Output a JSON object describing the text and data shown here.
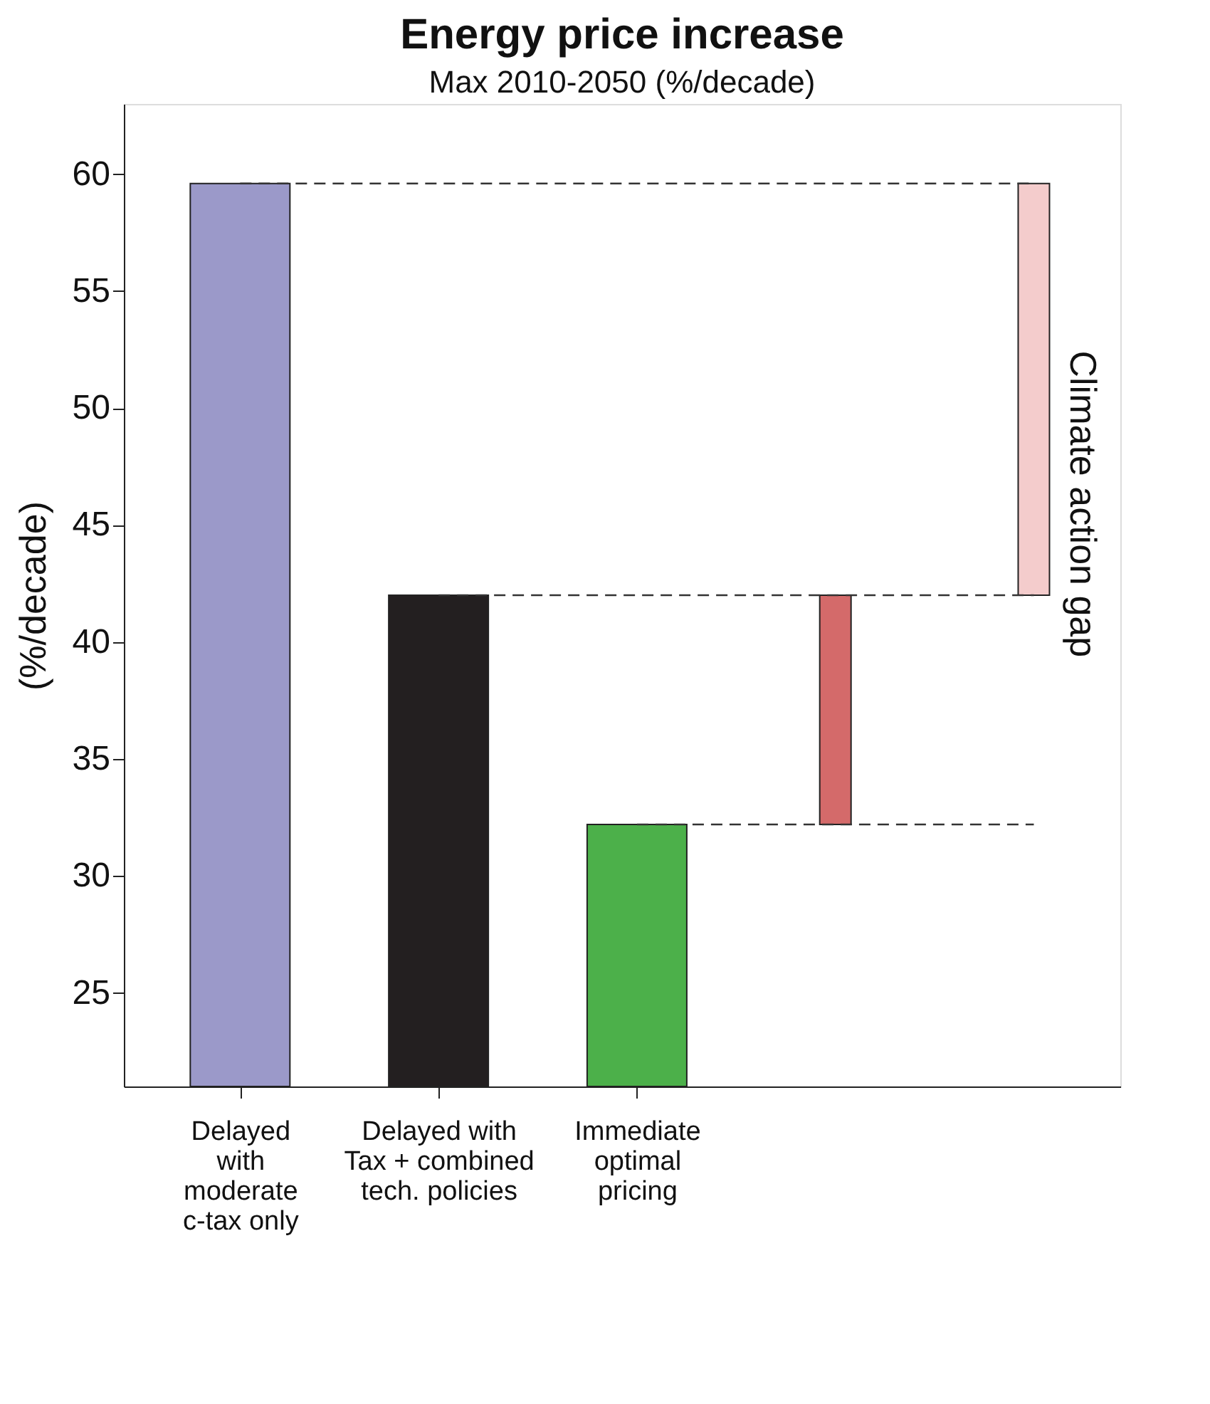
{
  "chart_data": {
    "type": "bar",
    "title": "Energy price increase",
    "subtitle": "Max 2010-2050 (%/decade)",
    "ylabel": "(%/decade)",
    "categories": [
      "Delayed\nwith\nmoderate\nc-tax only",
      "Delayed with\nTax + combined\ntech. policies",
      "Immediate\noptimal\npricing",
      null,
      null
    ],
    "base": [
      null,
      null,
      null,
      32.2,
      42.0
    ],
    "values": [
      59.6,
      42.0,
      32.2,
      9.8,
      17.6
    ],
    "colors": [
      "#9b99c9",
      "#231f20",
      "#4cb04a",
      "#d46a6a",
      "#f4cccc"
    ],
    "ylim": [
      21,
      63
    ],
    "yticks": [
      25,
      30,
      35,
      40,
      45,
      50,
      55,
      60
    ],
    "grid": false,
    "ref_lines": [
      {
        "axis": "y",
        "value": 59.6,
        "line_style": "dashed"
      },
      {
        "axis": "y",
        "value": 42.0,
        "line_style": "dashed"
      },
      {
        "axis": "y",
        "value": 32.2,
        "line_style": "dashed"
      }
    ],
    "annotations": [
      "Climate action gap"
    ]
  }
}
